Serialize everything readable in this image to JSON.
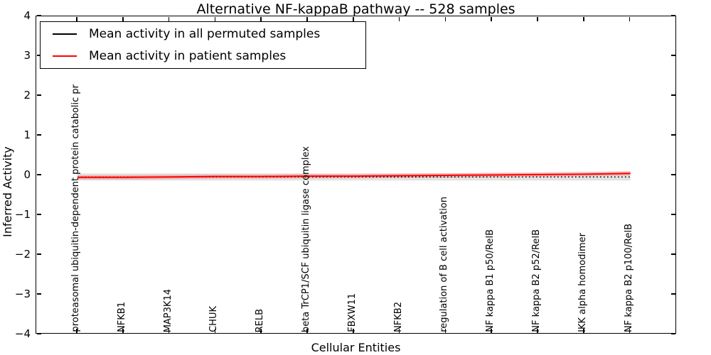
{
  "title": "Alternative NF-kappaB pathway -- 528 samples",
  "legend": {
    "items": [
      {
        "label": "Mean activity in all permuted samples",
        "color": "#000000"
      },
      {
        "label": "Mean activity in patient samples",
        "color": "#ff0000"
      }
    ]
  },
  "chart_data": {
    "type": "line",
    "title": "Alternative NF-kappaB pathway -- 528 samples",
    "xlabel": "Cellular Entities",
    "ylabel": "Inferred Activity",
    "ylim": [
      -4,
      4
    ],
    "grid": false,
    "legend_position": "upper left",
    "ytick_values": [
      4,
      3,
      2,
      1,
      0,
      -1,
      -2,
      -3,
      -4
    ],
    "ytick_labels": [
      "4",
      "3",
      "2",
      "1",
      "0",
      "−1",
      "−2",
      "−3",
      "−4"
    ],
    "categories": [
      "proteasomal ubiquitin-dependent protein catabolic pr",
      "NFKB1",
      "MAP3K14",
      "CHUK",
      "RELB",
      "beta TrCP1/SCF ubiquitin ligase complex",
      "FBXW11",
      "NFKB2",
      "regulation of B cell activation",
      "NF kappa B1 p50/RelB",
      "NF kappa B2 p52/RelB",
      "IKK alpha homodimer",
      "NF kappa B2 p100/RelB"
    ],
    "series": [
      {
        "name": "Mean activity in all permuted samples",
        "color": "#000000",
        "style": "dotted",
        "values": [
          -0.04,
          -0.04,
          -0.04,
          -0.04,
          -0.04,
          -0.04,
          -0.04,
          -0.04,
          -0.04,
          -0.04,
          -0.04,
          -0.04,
          -0.04
        ]
      },
      {
        "name": "Mean activity in patient samples",
        "color": "#ff0000",
        "style": "solid",
        "values": [
          -0.05,
          -0.05,
          -0.04,
          -0.03,
          -0.03,
          -0.02,
          -0.02,
          -0.01,
          0.0,
          0.01,
          0.02,
          0.03,
          0.05
        ]
      }
    ],
    "bands": [
      {
        "around_series": 0,
        "half_width": 0.09,
        "color": "#e2e2e2",
        "opacity": 1
      },
      {
        "around_series": 1,
        "half_width": 0.055,
        "color": "#f19999",
        "opacity": 0.6
      }
    ]
  }
}
